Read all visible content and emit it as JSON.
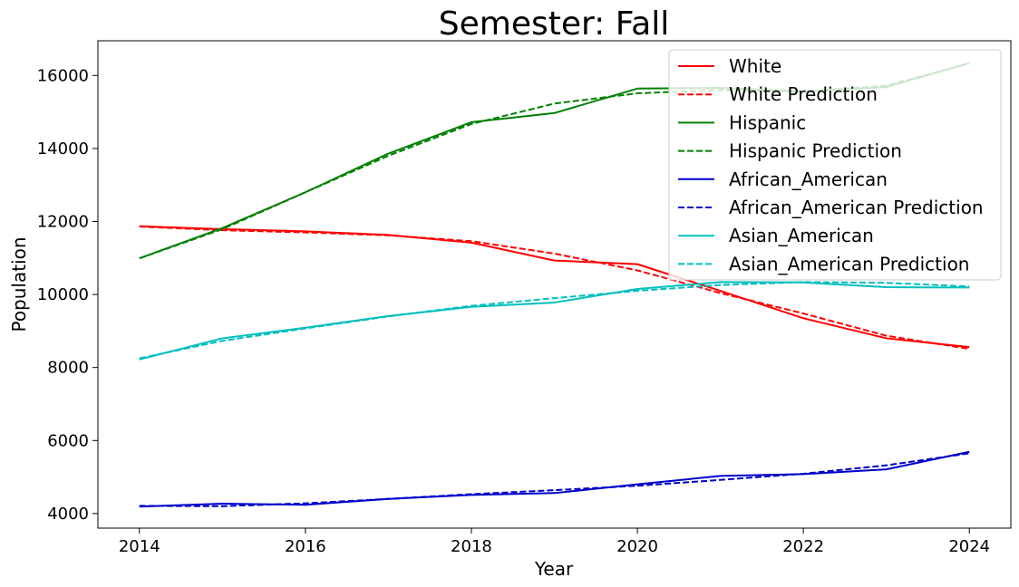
{
  "chart_data": {
    "type": "line",
    "title": "Semester: Fall",
    "xlabel": "Year",
    "ylabel": "Population",
    "xlim": [
      2013.5,
      2024.5
    ],
    "ylim": [
      3600,
      16950
    ],
    "xticks": [
      2014,
      2016,
      2018,
      2020,
      2022,
      2024
    ],
    "yticks": [
      4000,
      6000,
      8000,
      10000,
      12000,
      14000,
      16000
    ],
    "grid": false,
    "legend_position": "top-right",
    "x": [
      2014,
      2015,
      2016,
      2017,
      2018,
      2019,
      2020,
      2021,
      2022,
      2023,
      2024
    ],
    "series": [
      {
        "name": "White",
        "color": "#ff0000",
        "dash": "solid",
        "values": [
          11870,
          11790,
          11730,
          11630,
          11420,
          10930,
          10830,
          10100,
          9350,
          8800,
          8560
        ]
      },
      {
        "name": "White Prediction",
        "color": "#ff0000",
        "dash": "dashed",
        "values": [
          11860,
          11760,
          11700,
          11620,
          11460,
          11120,
          10660,
          10040,
          9480,
          8870,
          8510
        ]
      },
      {
        "name": "Hispanic",
        "color": "#008000",
        "dash": "solid",
        "values": [
          10990,
          11820,
          12800,
          13860,
          14720,
          14970,
          15640,
          15660,
          15560,
          15680,
          16340
        ]
      },
      {
        "name": "Hispanic Prediction",
        "color": "#008000",
        "dash": "dashed",
        "values": [
          10990,
          11790,
          12800,
          13800,
          14670,
          15230,
          15510,
          15600,
          15560,
          15720,
          16330
        ]
      },
      {
        "name": "African_American",
        "color": "#0000cd",
        "dash": "solid",
        "values": [
          4190,
          4270,
          4240,
          4400,
          4510,
          4560,
          4800,
          5030,
          5080,
          5210,
          5690
        ]
      },
      {
        "name": "African_American Prediction",
        "color": "#0000cd",
        "dash": "dashed",
        "values": [
          4210,
          4200,
          4280,
          4400,
          4530,
          4640,
          4760,
          4920,
          5090,
          5320,
          5650
        ]
      },
      {
        "name": "Asian_American",
        "color": "#00bfbf",
        "dash": "solid",
        "values": [
          8220,
          8800,
          9090,
          9410,
          9660,
          9780,
          10150,
          10340,
          10330,
          10200,
          10190
        ]
      },
      {
        "name": "Asian_American Prediction",
        "color": "#00bfbf",
        "dash": "dashed",
        "values": [
          8250,
          8730,
          9070,
          9400,
          9690,
          9900,
          10100,
          10260,
          10340,
          10320,
          10220
        ]
      }
    ]
  }
}
